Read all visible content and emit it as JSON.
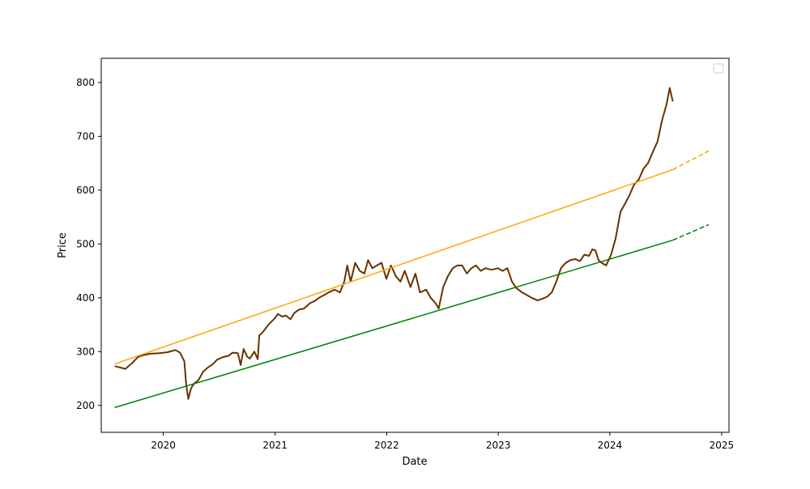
{
  "chart_data": {
    "type": "line",
    "title": "",
    "xlabel": "Date",
    "ylabel": "Price",
    "xlim": [
      "2019-06-12",
      "2025-01-25"
    ],
    "ylim": [
      150,
      845
    ],
    "x_ticks": [
      "2020",
      "2021",
      "2022",
      "2023",
      "2024",
      "2025"
    ],
    "y_ticks": [
      200,
      300,
      400,
      500,
      600,
      700,
      800
    ],
    "grid": false,
    "legend": {
      "placement": "top-right",
      "entries": []
    },
    "series": [
      {
        "role": "price",
        "color": "#663300",
        "style": "solid",
        "x": [
          "2019-07-26",
          "2019-08-30",
          "2019-09-20",
          "2019-10-10",
          "2019-10-25",
          "2019-11-20",
          "2019-12-20",
          "2020-01-15",
          "2020-02-10",
          "2020-02-25",
          "2020-03-10",
          "2020-03-16",
          "2020-03-23",
          "2020-04-01",
          "2020-04-10",
          "2020-04-25",
          "2020-05-10",
          "2020-05-25",
          "2020-06-10",
          "2020-06-25",
          "2020-07-15",
          "2020-08-01",
          "2020-08-15",
          "2020-09-01",
          "2020-09-10",
          "2020-09-20",
          "2020-10-01",
          "2020-10-10",
          "2020-10-25",
          "2020-11-05",
          "2020-11-10",
          "2020-11-20",
          "2020-12-10",
          "2020-12-31",
          "2021-01-10",
          "2021-01-25",
          "2021-02-05",
          "2021-02-20",
          "2021-03-05",
          "2021-03-20",
          "2021-04-05",
          "2021-04-25",
          "2021-05-10",
          "2021-05-25",
          "2021-06-10",
          "2021-06-25",
          "2021-07-15",
          "2021-08-01",
          "2021-08-15",
          "2021-08-25",
          "2021-09-05",
          "2021-09-20",
          "2021-10-05",
          "2021-10-20",
          "2021-11-01",
          "2021-11-15",
          "2021-11-30",
          "2021-12-15",
          "2021-12-31",
          "2022-01-15",
          "2022-01-31",
          "2022-02-15",
          "2022-03-01",
          "2022-03-20",
          "2022-04-05",
          "2022-04-20",
          "2022-05-10",
          "2022-05-25",
          "2022-06-10",
          "2022-06-20",
          "2022-07-05",
          "2022-07-20",
          "2022-08-05",
          "2022-08-20",
          "2022-09-05",
          "2022-09-20",
          "2022-10-05",
          "2022-10-20",
          "2022-11-05",
          "2022-11-20",
          "2022-12-10",
          "2022-12-31",
          "2023-01-15",
          "2023-01-31",
          "2023-02-15",
          "2023-03-01",
          "2023-03-20",
          "2023-04-05",
          "2023-04-20",
          "2023-05-10",
          "2023-05-25",
          "2023-06-10",
          "2023-06-25",
          "2023-07-10",
          "2023-07-25",
          "2023-08-10",
          "2023-08-25",
          "2023-09-10",
          "2023-09-25",
          "2023-10-10",
          "2023-10-25",
          "2023-11-05",
          "2023-11-15",
          "2023-11-25",
          "2023-12-05",
          "2023-12-20",
          "2024-01-05",
          "2024-01-20",
          "2024-02-05",
          "2024-02-20",
          "2024-03-05",
          "2024-03-20",
          "2024-04-05",
          "2024-04-20",
          "2024-05-05",
          "2024-05-20",
          "2024-06-05",
          "2024-06-20",
          "2024-07-05",
          "2024-07-15",
          "2024-07-25"
        ],
        "y": [
          273,
          268,
          278,
          290,
          293,
          296,
          297,
          299,
          303,
          298,
          282,
          238,
          212,
          232,
          240,
          247,
          262,
          270,
          276,
          285,
          290,
          292,
          298,
          297,
          275,
          305,
          291,
          287,
          300,
          286,
          330,
          335,
          350,
          362,
          370,
          365,
          367,
          360,
          372,
          378,
          380,
          390,
          394,
          400,
          405,
          410,
          415,
          410,
          430,
          460,
          430,
          465,
          450,
          445,
          470,
          455,
          460,
          465,
          435,
          460,
          440,
          430,
          450,
          420,
          445,
          410,
          415,
          400,
          390,
          380,
          420,
          440,
          455,
          460,
          460,
          445,
          455,
          460,
          450,
          455,
          452,
          455,
          450,
          455,
          430,
          418,
          410,
          405,
          400,
          395,
          398,
          402,
          410,
          430,
          455,
          465,
          470,
          472,
          468,
          480,
          478,
          490,
          488,
          470,
          465,
          460,
          480,
          510,
          560,
          575,
          590,
          610,
          620,
          640,
          650,
          670,
          690,
          730,
          760,
          790,
          765
        ]
      },
      {
        "role": "upper-trend",
        "color": "#ffa500",
        "style": "solid",
        "x": [
          "2019-07-26",
          "2024-07-25"
        ],
        "y": [
          277,
          638
        ]
      },
      {
        "role": "upper-trend-forecast",
        "color": "#ffa500",
        "style": "dashed",
        "x": [
          "2024-07-25",
          "2024-11-20"
        ],
        "y": [
          638,
          673
        ]
      },
      {
        "role": "lower-trend",
        "color": "#008000",
        "style": "solid",
        "x": [
          "2019-07-26",
          "2024-07-25"
        ],
        "y": [
          196,
          507
        ]
      },
      {
        "role": "lower-trend-forecast",
        "color": "#008000",
        "style": "dashed",
        "x": [
          "2024-07-25",
          "2024-11-20"
        ],
        "y": [
          507,
          536
        ]
      }
    ]
  }
}
